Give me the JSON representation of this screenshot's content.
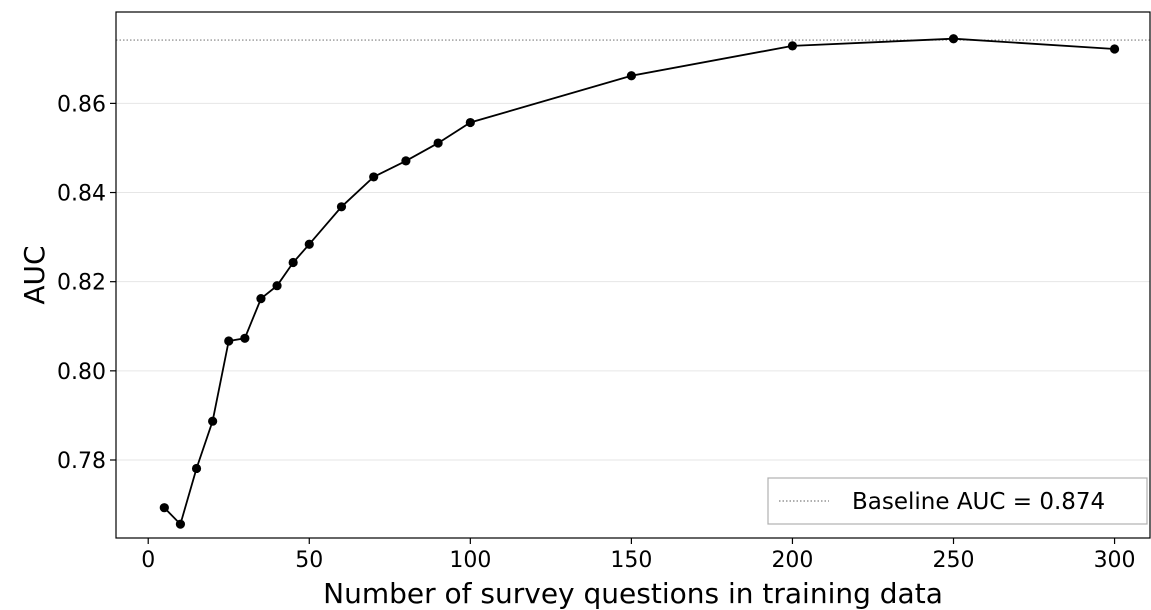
{
  "chart_data": {
    "type": "line",
    "title": "",
    "xlabel": "Number of survey questions in training data",
    "ylabel": "AUC",
    "xlim": [
      -10,
      311
    ],
    "ylim": [
      0.7625,
      0.8805
    ],
    "xticks": [
      0,
      50,
      100,
      150,
      200,
      250,
      300
    ],
    "yticks": [
      0.78,
      0.8,
      0.82,
      0.84,
      0.86
    ],
    "ytick_labels": [
      "0.78",
      "0.80",
      "0.82",
      "0.84",
      "0.86"
    ],
    "grid": "horizontal",
    "series": [
      {
        "color": "#000000",
        "marker": "circle",
        "x": [
          5,
          10,
          15,
          20,
          25,
          30,
          35,
          40,
          45,
          50,
          60,
          70,
          80,
          90,
          100,
          150,
          200,
          250,
          300
        ],
        "y": [
          0.7693,
          0.7656,
          0.7781,
          0.7887,
          0.8067,
          0.8073,
          0.8162,
          0.8191,
          0.8243,
          0.8284,
          0.8368,
          0.8435,
          0.8471,
          0.8511,
          0.8557,
          0.8662,
          0.8729,
          0.8745,
          0.8722
        ]
      }
    ],
    "reference_line": {
      "label": "Baseline AUC = 0.874",
      "value": 0.8742,
      "color": "#7f7f7f",
      "style": "dotted"
    },
    "legend_position": "bottom-right"
  }
}
